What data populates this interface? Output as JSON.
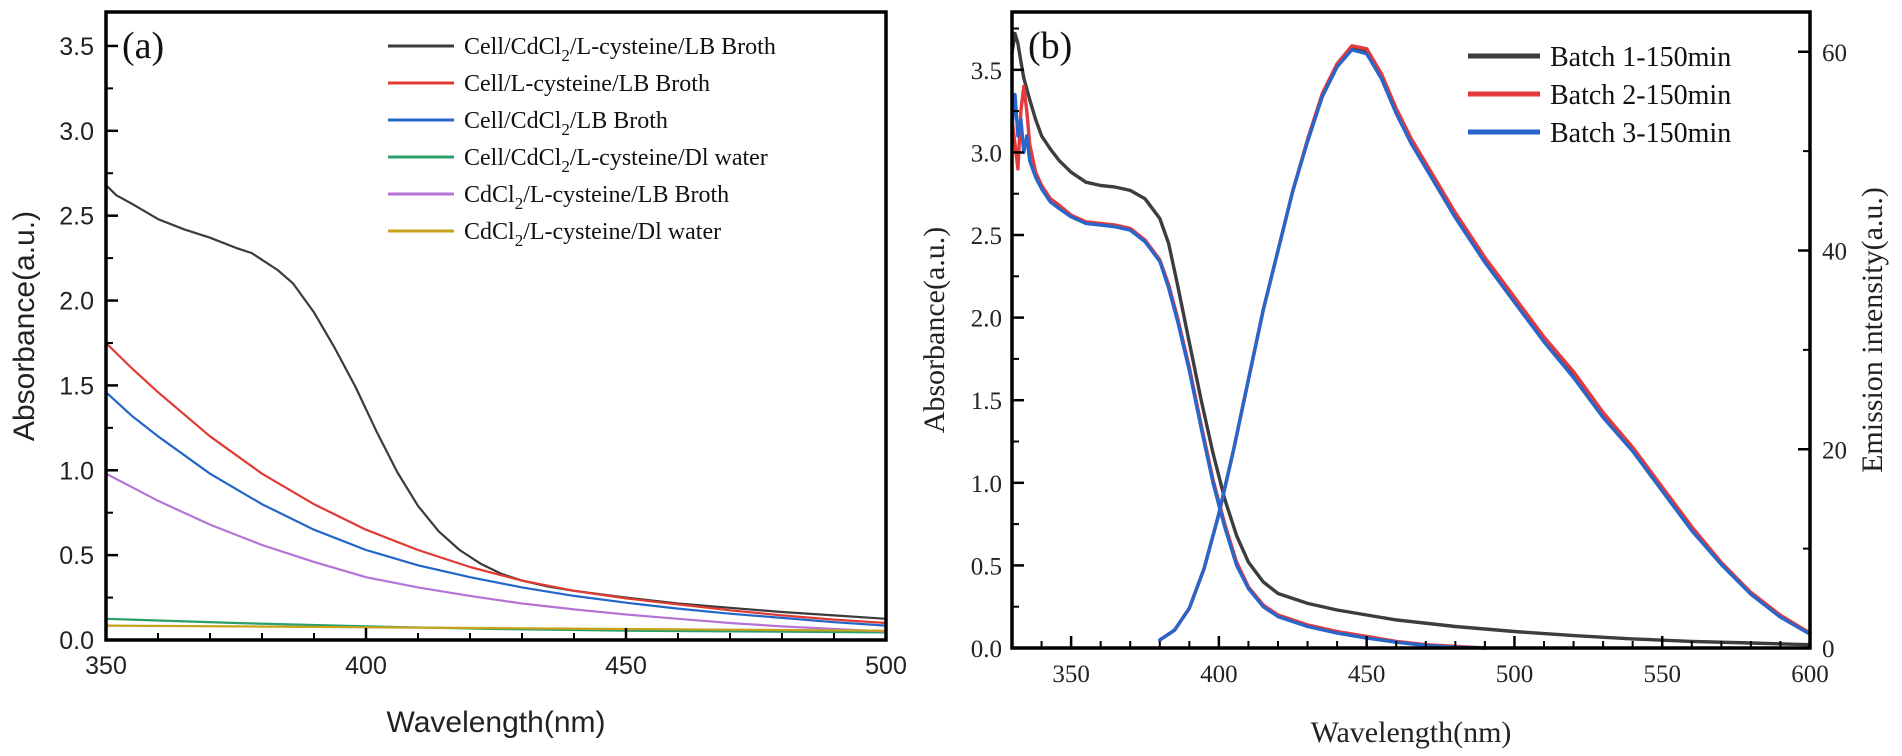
{
  "chart_data": [
    {
      "id": "a",
      "type": "line",
      "panel_label": "(a)",
      "xlabel": "Wavelength(nm)",
      "ylabel": "Absorbance(a.u.)",
      "xlim": [
        350,
        500
      ],
      "ylim": [
        0,
        3.7
      ],
      "xticks": [
        350,
        400,
        450,
        500
      ],
      "xtick_labels": [
        "350",
        "400",
        "450",
        "500"
      ],
      "yticks": [
        0,
        0.5,
        1,
        1.5,
        2,
        2.5,
        3,
        3.5
      ],
      "ytick_labels": [
        "0.0",
        "0.5",
        "1.0",
        "1.5",
        "2.0",
        "2.5",
        "3.0",
        "3.5"
      ],
      "legend_position": "top-right",
      "series": [
        {
          "name": "Cell/CdCl2/L-cysteine/LB Broth",
          "legend": {
            "pre": "Cell/CdCl",
            "sub": "2",
            "post": "/L-cysteine/LB Broth"
          },
          "color": "#3b3b3b",
          "x": [
            350,
            352,
            355,
            360,
            365,
            370,
            375,
            378,
            380,
            383,
            386,
            390,
            394,
            398,
            402,
            406,
            410,
            414,
            418,
            422,
            426,
            430,
            435,
            440,
            445,
            450,
            460,
            470,
            480,
            490,
            500
          ],
          "y": [
            2.68,
            2.62,
            2.57,
            2.48,
            2.42,
            2.37,
            2.31,
            2.28,
            2.24,
            2.18,
            2.1,
            1.93,
            1.72,
            1.49,
            1.23,
            0.99,
            0.79,
            0.64,
            0.53,
            0.45,
            0.39,
            0.35,
            0.315,
            0.29,
            0.27,
            0.25,
            0.215,
            0.19,
            0.165,
            0.145,
            0.125
          ]
        },
        {
          "name": "Cell/L-cysteine/LB Broth",
          "legend": {
            "pre": "Cell/L-cysteine/LB Broth",
            "sub": "",
            "post": ""
          },
          "color": "#e03b32",
          "x": [
            350,
            355,
            360,
            370,
            380,
            390,
            400,
            410,
            420,
            430,
            440,
            450,
            460,
            470,
            480,
            490,
            500
          ],
          "y": [
            1.75,
            1.6,
            1.46,
            1.2,
            0.98,
            0.8,
            0.65,
            0.53,
            0.43,
            0.35,
            0.29,
            0.245,
            0.21,
            0.175,
            0.145,
            0.12,
            0.1
          ]
        },
        {
          "name": "Cell/CdCl2/LB Broth",
          "legend": {
            "pre": "Cell/CdCl",
            "sub": "2",
            "post": "/LB Broth"
          },
          "color": "#2267c8",
          "x": [
            350,
            355,
            360,
            370,
            380,
            390,
            400,
            410,
            420,
            430,
            440,
            450,
            460,
            470,
            480,
            490,
            500
          ],
          "y": [
            1.46,
            1.32,
            1.2,
            0.98,
            0.8,
            0.65,
            0.53,
            0.44,
            0.37,
            0.31,
            0.26,
            0.22,
            0.185,
            0.155,
            0.13,
            0.105,
            0.085
          ]
        },
        {
          "name": "Cell/CdCl2/L-cysteine/DI water",
          "legend": {
            "pre": "Cell/CdCl",
            "sub": "2",
            "post": "/L-cysteine/Dl water"
          },
          "color": "#2aa06a",
          "x": [
            350,
            375,
            400,
            425,
            450,
            475,
            500
          ],
          "y": [
            0.125,
            0.1,
            0.08,
            0.065,
            0.055,
            0.05,
            0.045
          ]
        },
        {
          "name": "CdCl2/L-cysteine/LB Broth",
          "legend": {
            "pre": "CdCl",
            "sub": "2",
            "post": "/L-cysteine/LB Broth"
          },
          "color": "#b573d6",
          "x": [
            350,
            355,
            360,
            370,
            380,
            390,
            400,
            410,
            420,
            430,
            440,
            450,
            460,
            470,
            480,
            490,
            500
          ],
          "y": [
            0.98,
            0.9,
            0.82,
            0.68,
            0.56,
            0.46,
            0.37,
            0.31,
            0.26,
            0.215,
            0.18,
            0.15,
            0.125,
            0.1,
            0.08,
            0.065,
            0.05
          ]
        },
        {
          "name": "CdCl2/L-cysteine/DI water",
          "legend": {
            "pre": "CdCl",
            "sub": "2",
            "post": "/L-cysteine/Dl water"
          },
          "color": "#c9a21b",
          "x": [
            350,
            375,
            400,
            425,
            450,
            475,
            500
          ],
          "y": [
            0.085,
            0.08,
            0.075,
            0.07,
            0.065,
            0.06,
            0.055
          ]
        }
      ]
    },
    {
      "id": "b",
      "type": "line",
      "panel_label": "(b)",
      "xlabel": "Wavelength(nm)",
      "ylabel": "Absorbance(a.u.)",
      "y2label": "Emission intensity(a.u.)",
      "xlim": [
        330,
        600
      ],
      "ylim": [
        0,
        3.85
      ],
      "y2lim": [
        0,
        64
      ],
      "xticks": [
        350,
        400,
        450,
        500,
        550,
        600
      ],
      "xtick_labels": [
        "350",
        "400",
        "450",
        "500",
        "550",
        "600"
      ],
      "yticks": [
        0,
        0.5,
        1,
        1.5,
        2,
        2.5,
        3,
        3.5
      ],
      "ytick_labels": [
        "0.0",
        "0.5",
        "1.0",
        "1.5",
        "2.0",
        "2.5",
        "3.0",
        "3.5"
      ],
      "y2ticks": [
        0,
        20,
        40,
        60
      ],
      "y2tick_labels": [
        "0",
        "20",
        "40",
        "60"
      ],
      "legend_position": "top-right",
      "series": [
        {
          "name": "Batch 1-150min",
          "color": "#3d3d3d",
          "absorbance": {
            "x": [
              330,
              331,
              332,
              333,
              334,
              336,
              338,
              340,
              343,
              346,
              350,
              355,
              360,
              365,
              370,
              375,
              380,
              383,
              386,
              390,
              394,
              398,
              402,
              406,
              410,
              415,
              420,
              430,
              440,
              450,
              460,
              480,
              500,
              520,
              540,
              560,
              580,
              600
            ],
            "y": [
              3.6,
              3.72,
              3.66,
              3.55,
              3.45,
              3.32,
              3.2,
              3.1,
              3.02,
              2.95,
              2.88,
              2.82,
              2.8,
              2.79,
              2.77,
              2.72,
              2.6,
              2.45,
              2.2,
              1.85,
              1.5,
              1.18,
              0.9,
              0.68,
              0.52,
              0.4,
              0.33,
              0.27,
              0.23,
              0.2,
              0.17,
              0.13,
              0.1,
              0.075,
              0.055,
              0.04,
              0.03,
              0.02
            ]
          },
          "emission": {
            "x": [
              380,
              385,
              390,
              395,
              400,
              405,
              410,
              415,
              420,
              425,
              430,
              435,
              440,
              445,
              450,
              455,
              460,
              465,
              470,
              480,
              490,
              500,
              510,
              520,
              530,
              540,
              550,
              560,
              570,
              580,
              590,
              600
            ],
            "y": [
              0.8,
              1.8,
              4,
              8,
              13.5,
              20,
              27,
              34,
              40,
              46,
              51,
              55.5,
              58.5,
              60.3,
              60,
              57.5,
              54,
              51,
              48.5,
              43.5,
              39,
              35,
              31,
              27.5,
              23.5,
              20,
              16,
              12,
              8.5,
              5.5,
              3.2,
              1.5
            ]
          }
        },
        {
          "name": "Batch 2-150min",
          "color": "#e5393b",
          "absorbance": {
            "x": [
              330,
              331,
              332,
              333,
              334,
              335,
              336,
              338,
              340,
              343,
              346,
              350,
              355,
              360,
              365,
              370,
              375,
              380,
              383,
              386,
              390,
              394,
              398,
              402,
              406,
              410,
              415,
              420,
              430,
              440,
              450,
              460,
              470,
              480,
              490
            ],
            "y": [
              3.2,
              3.05,
              2.9,
              3.25,
              3.4,
              3.25,
              3.05,
              2.88,
              2.8,
              2.72,
              2.68,
              2.62,
              2.58,
              2.57,
              2.56,
              2.54,
              2.47,
              2.35,
              2.2,
              2.0,
              1.7,
              1.35,
              1.02,
              0.75,
              0.52,
              0.37,
              0.26,
              0.2,
              0.14,
              0.1,
              0.07,
              0.04,
              0.02,
              0.01,
              0.0
            ]
          },
          "emission": {
            "x": [
              380,
              385,
              390,
              395,
              400,
              405,
              410,
              415,
              420,
              425,
              430,
              435,
              440,
              445,
              450,
              455,
              460,
              465,
              470,
              480,
              490,
              500,
              510,
              520,
              530,
              540,
              550,
              560,
              570,
              580,
              590,
              600
            ],
            "y": [
              0.8,
              1.8,
              4,
              8,
              13.5,
              20,
              27,
              34,
              40,
              46,
              51.2,
              55.8,
              58.8,
              60.6,
              60.3,
              57.8,
              54.3,
              51.3,
              48.8,
              43.8,
              39.3,
              35.3,
              31.3,
              27.8,
              23.7,
              20.2,
              16.2,
              12.2,
              8.6,
              5.6,
              3.3,
              1.5
            ]
          }
        },
        {
          "name": "Batch 3-150min",
          "color": "#2a66c9",
          "absorbance": {
            "x": [
              330,
              331,
              332,
              333,
              334,
              335,
              336,
              338,
              340,
              343,
              346,
              350,
              355,
              360,
              365,
              370,
              375,
              380,
              383,
              386,
              390,
              394,
              398,
              402,
              406,
              410,
              415,
              420,
              430,
              440,
              450,
              460,
              470,
              480,
              490
            ],
            "y": [
              3.15,
              3.35,
              3.1,
              3.2,
              3.0,
              3.1,
              2.95,
              2.85,
              2.78,
              2.7,
              2.66,
              2.61,
              2.57,
              2.56,
              2.55,
              2.53,
              2.46,
              2.34,
              2.18,
              1.98,
              1.68,
              1.33,
              1.0,
              0.73,
              0.5,
              0.36,
              0.25,
              0.19,
              0.13,
              0.09,
              0.06,
              0.035,
              0.015,
              0.005,
              0.0
            ]
          },
          "emission": {
            "x": [
              380,
              385,
              390,
              395,
              400,
              405,
              410,
              415,
              420,
              425,
              430,
              435,
              440,
              445,
              450,
              455,
              460,
              465,
              470,
              480,
              490,
              500,
              510,
              520,
              530,
              540,
              550,
              560,
              570,
              580,
              590,
              600
            ],
            "y": [
              0.8,
              1.8,
              4,
              8,
              13.5,
              20,
              27,
              34,
              40,
              46,
              51,
              55.5,
              58.5,
              60.2,
              59.8,
              57.3,
              53.8,
              50.8,
              48.3,
              43.3,
              38.8,
              34.8,
              30.8,
              27.2,
              23.2,
              19.8,
              15.8,
              11.8,
              8.4,
              5.4,
              3.1,
              1.4
            ]
          }
        }
      ]
    }
  ]
}
